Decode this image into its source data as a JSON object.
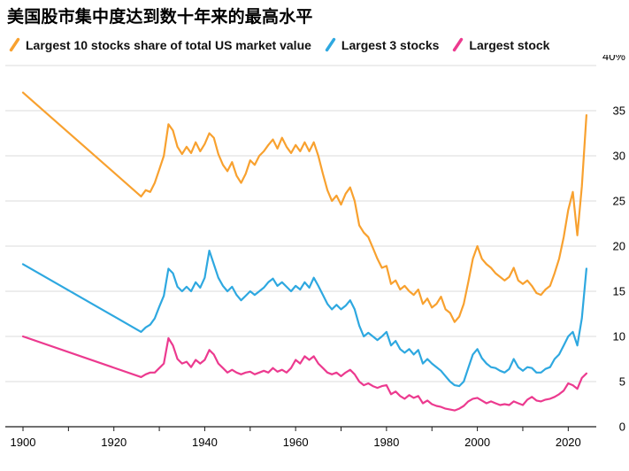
{
  "title": "美国股市集中度达到数十年来的最高水平",
  "colors": {
    "largest10": "#F8A12F",
    "largest3": "#2EA8E0",
    "largest1": "#EC3A8F",
    "gridline": "#DBDBDB",
    "axis": "#1A1A1A",
    "text": "#000000"
  },
  "chart_data": {
    "type": "line",
    "title": "美国股市集中度达到数十年来的最高水平",
    "legend_position": "top",
    "grid": "horizontal",
    "x_axis": {
      "range": [
        1900,
        2025
      ],
      "ticks": [
        1900,
        1920,
        1940,
        1960,
        1980,
        2000,
        2020
      ],
      "tick_labels": [
        "1900",
        "1920",
        "1940",
        "1960",
        "1980",
        "2000",
        "2020"
      ],
      "minor_tick_step": 10
    },
    "y_axis": {
      "range": [
        0,
        40
      ],
      "ticks": [
        0,
        5,
        10,
        15,
        20,
        25,
        30,
        35,
        40
      ],
      "tick_labels": [
        "0",
        "5",
        "10",
        "15",
        "20",
        "25",
        "30",
        "35",
        "40%"
      ],
      "top_label": "40%",
      "unit": "%",
      "side": "right"
    },
    "x": [
      1900,
      1926,
      1927,
      1928,
      1929,
      1930,
      1931,
      1932,
      1933,
      1934,
      1935,
      1936,
      1937,
      1938,
      1939,
      1940,
      1941,
      1942,
      1943,
      1944,
      1945,
      1946,
      1947,
      1948,
      1949,
      1950,
      1951,
      1952,
      1953,
      1954,
      1955,
      1956,
      1957,
      1958,
      1959,
      1960,
      1961,
      1962,
      1963,
      1964,
      1965,
      1966,
      1967,
      1968,
      1969,
      1970,
      1971,
      1972,
      1973,
      1974,
      1975,
      1976,
      1977,
      1978,
      1979,
      1980,
      1981,
      1982,
      1983,
      1984,
      1985,
      1986,
      1987,
      1988,
      1989,
      1990,
      1991,
      1992,
      1993,
      1994,
      1995,
      1996,
      1997,
      1998,
      1999,
      2000,
      2001,
      2002,
      2003,
      2004,
      2005,
      2006,
      2007,
      2008,
      2009,
      2010,
      2011,
      2012,
      2013,
      2014,
      2015,
      2016,
      2017,
      2018,
      2019,
      2020,
      2021,
      2022,
      2023,
      2024
    ],
    "series": [
      {
        "name": "Largest 10 stocks share of total US market value",
        "color": "#F8A12F",
        "values": [
          37,
          25.5,
          26.2,
          26,
          27,
          28.5,
          30,
          33.5,
          32.8,
          31,
          30.2,
          31,
          30.3,
          31.5,
          30.5,
          31.3,
          32.5,
          32,
          30.2,
          29,
          28.3,
          29.3,
          27.8,
          27,
          28,
          29.5,
          29,
          30,
          30.5,
          31.2,
          31.8,
          30.8,
          32,
          31,
          30.3,
          31.2,
          30.5,
          31.5,
          30.5,
          31.5,
          30,
          28,
          26.2,
          25,
          25.6,
          24.6,
          25.8,
          26.5,
          25,
          22.3,
          21.5,
          21,
          19.8,
          18.6,
          17.6,
          17.8,
          15.8,
          16.2,
          15.2,
          15.6,
          15,
          14.6,
          15.2,
          13.6,
          14.2,
          13.2,
          13.6,
          14.4,
          13,
          12.6,
          11.6,
          12.2,
          13.6,
          16,
          18.6,
          20,
          18.6,
          18,
          17.6,
          17,
          16.6,
          16.2,
          16.6,
          17.6,
          16.2,
          15.8,
          16.2,
          15.6,
          14.8,
          14.6,
          15.2,
          15.6,
          17,
          18.6,
          21,
          24,
          26,
          21.2,
          26.6,
          34.5
        ]
      },
      {
        "name": "Largest 3 stocks",
        "color": "#2EA8E0",
        "values": [
          18,
          10.5,
          11,
          11.3,
          12,
          13.3,
          14.5,
          17.5,
          17,
          15.5,
          15,
          15.5,
          15,
          16,
          15.4,
          16.5,
          19.5,
          18,
          16.5,
          15.6,
          15,
          15.5,
          14.6,
          14,
          14.5,
          15,
          14.6,
          15,
          15.4,
          16,
          16.4,
          15.6,
          16,
          15.5,
          15,
          15.6,
          15.2,
          16,
          15.4,
          16.5,
          15.6,
          14.6,
          13.6,
          13,
          13.5,
          13,
          13.4,
          14,
          13,
          11.2,
          10,
          10.4,
          10,
          9.6,
          10,
          10.5,
          9,
          9.5,
          8.6,
          8.2,
          8.6,
          8,
          8.5,
          7,
          7.5,
          7,
          6.6,
          6.2,
          5.6,
          5,
          4.6,
          4.5,
          5,
          6.5,
          8,
          8.6,
          7.6,
          7,
          6.6,
          6.5,
          6.2,
          6,
          6.4,
          7.5,
          6.6,
          6.2,
          6.6,
          6.5,
          6,
          6,
          6.4,
          6.6,
          7.5,
          8,
          9,
          10,
          10.5,
          9,
          12,
          17.5
        ]
      },
      {
        "name": "Largest stock",
        "color": "#EC3A8F",
        "values": [
          10,
          5.5,
          5.8,
          6,
          6,
          6.5,
          7,
          9.8,
          9,
          7.5,
          7,
          7.2,
          6.6,
          7.4,
          7,
          7.4,
          8.5,
          8,
          7,
          6.5,
          6,
          6.3,
          6,
          5.8,
          6,
          6.1,
          5.8,
          6,
          6.2,
          6,
          6.5,
          6.1,
          6.3,
          6,
          6.5,
          7.4,
          7,
          7.8,
          7.4,
          7.8,
          7,
          6.5,
          6,
          5.8,
          6,
          5.6,
          6,
          6.3,
          5.8,
          5,
          4.6,
          4.8,
          4.5,
          4.3,
          4.5,
          4.6,
          3.6,
          3.9,
          3.4,
          3.1,
          3.5,
          3.2,
          3.4,
          2.6,
          2.9,
          2.5,
          2.3,
          2.2,
          2,
          1.9,
          1.8,
          2,
          2.3,
          2.8,
          3.1,
          3.2,
          2.9,
          2.6,
          2.8,
          2.6,
          2.4,
          2.5,
          2.4,
          2.8,
          2.6,
          2.4,
          3,
          3.3,
          2.9,
          2.8,
          3,
          3.1,
          3.3,
          3.6,
          4,
          4.8,
          4.6,
          4.2,
          5.4,
          5.9
        ]
      }
    ]
  }
}
